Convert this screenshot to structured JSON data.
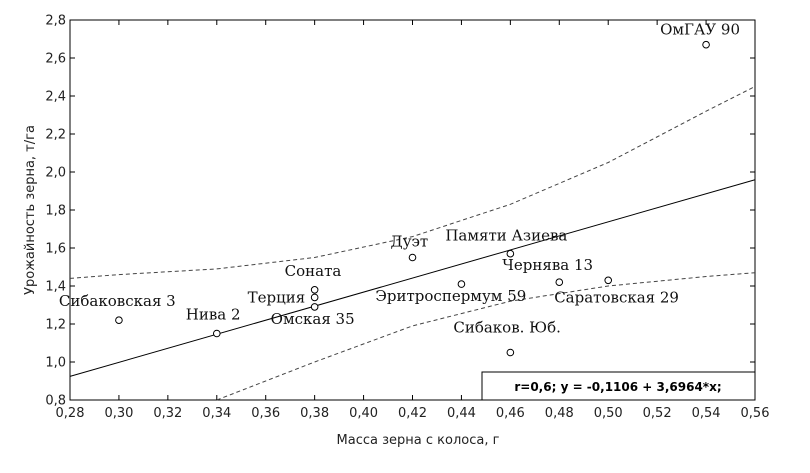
{
  "chart_data": {
    "type": "scatter",
    "xlabel": "Масса зерна с колоса, г",
    "ylabel": "Урожайность зерна, т/га",
    "xlim": [
      0.28,
      0.56
    ],
    "ylim": [
      0.8,
      2.8
    ],
    "x_ticks": [
      "0,28",
      "0,30",
      "0,32",
      "0,34",
      "0,36",
      "0,38",
      "0,40",
      "0,42",
      "0,44",
      "0,46",
      "0,48",
      "0,50",
      "0,52",
      "0,54",
      "0,56"
    ],
    "y_ticks": [
      "0,8",
      "1,0",
      "1,2",
      "1,4",
      "1,6",
      "1,8",
      "2,0",
      "2,2",
      "2,4",
      "2,6",
      "2,8"
    ],
    "grid": false,
    "points": [
      {
        "x": 0.3,
        "y": 1.22,
        "label": "Сибаковская 3"
      },
      {
        "x": 0.34,
        "y": 1.15,
        "label": "Нива 2"
      },
      {
        "x": 0.38,
        "y": 1.29,
        "label": "Омская 35"
      },
      {
        "x": 0.38,
        "y": 1.34,
        "label": "Терция"
      },
      {
        "x": 0.38,
        "y": 1.38,
        "label": "Соната"
      },
      {
        "x": 0.42,
        "y": 1.55,
        "label": "Дуэт"
      },
      {
        "x": 0.44,
        "y": 1.41,
        "label": "Эритроспермум 59"
      },
      {
        "x": 0.46,
        "y": 1.57,
        "label": "Памяти Азиева"
      },
      {
        "x": 0.46,
        "y": 1.05,
        "label": "Сибаков. Юб."
      },
      {
        "x": 0.48,
        "y": 1.42,
        "label": "Чернява 13"
      },
      {
        "x": 0.5,
        "y": 1.43,
        "label": "Саратовская 29"
      },
      {
        "x": 0.54,
        "y": 2.67,
        "label": "ОмГАУ 90"
      }
    ],
    "regression": {
      "intercept": -0.1106,
      "slope": 3.6964
    },
    "confidence_band": {
      "upper": [
        [
          0.28,
          1.44
        ],
        [
          0.3,
          1.46
        ],
        [
          0.34,
          1.49
        ],
        [
          0.38,
          1.55
        ],
        [
          0.42,
          1.66
        ],
        [
          0.46,
          1.83
        ],
        [
          0.5,
          2.05
        ],
        [
          0.54,
          2.32
        ],
        [
          0.56,
          2.45
        ]
      ],
      "lower": [
        [
          0.34,
          0.8
        ],
        [
          0.38,
          1.0
        ],
        [
          0.42,
          1.19
        ],
        [
          0.46,
          1.32
        ],
        [
          0.5,
          1.4
        ],
        [
          0.54,
          1.45
        ],
        [
          0.56,
          1.47
        ]
      ]
    },
    "annotation": "r=0,6; y = -0,1106 + 3,6964*x;"
  }
}
